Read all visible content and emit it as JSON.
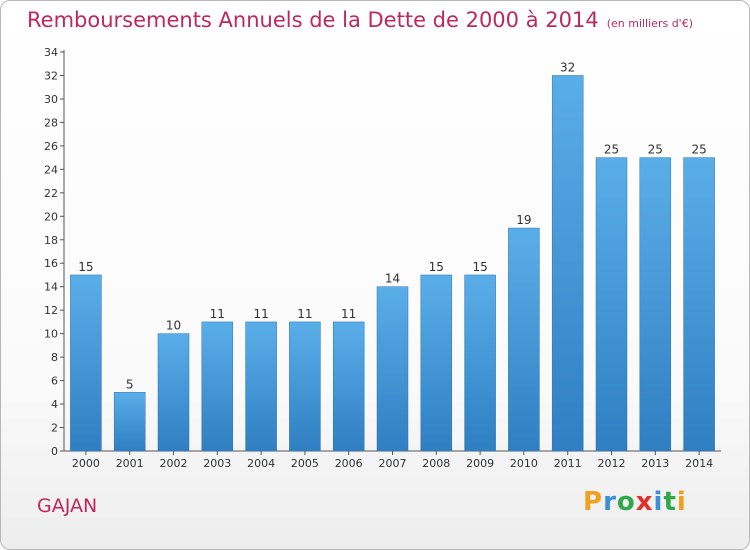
{
  "chart_data": {
    "type": "bar",
    "title": "Remboursements Annuels de la Dette de 2000 à 2014",
    "unit_note": "(en milliers d'€)",
    "categories": [
      "2000",
      "2001",
      "2002",
      "2003",
      "2004",
      "2005",
      "2006",
      "2007",
      "2008",
      "2009",
      "2010",
      "2011",
      "2012",
      "2013",
      "2014"
    ],
    "values": [
      15,
      5,
      10,
      11,
      11,
      11,
      11,
      14,
      15,
      15,
      19,
      32,
      25,
      25,
      25
    ],
    "ylim": [
      0,
      34
    ],
    "yticks": [
      0,
      2,
      4,
      6,
      8,
      10,
      12,
      14,
      16,
      18,
      20,
      22,
      24,
      26,
      28,
      30,
      32,
      34
    ],
    "xlabel": "",
    "ylabel": "",
    "grid": false,
    "bar_color_top": "#5aaee8",
    "bar_color_bottom": "#2f7fc2"
  },
  "commune": "GAJAN",
  "logo": {
    "letters": [
      "P",
      "r",
      "o",
      "x",
      "i",
      "t",
      "i"
    ],
    "colors": [
      "#f0a020",
      "#3a8fd8",
      "#2fa84a",
      "#e0322a",
      "#3a8fd8",
      "#2fa84a",
      "#f0a020"
    ]
  }
}
